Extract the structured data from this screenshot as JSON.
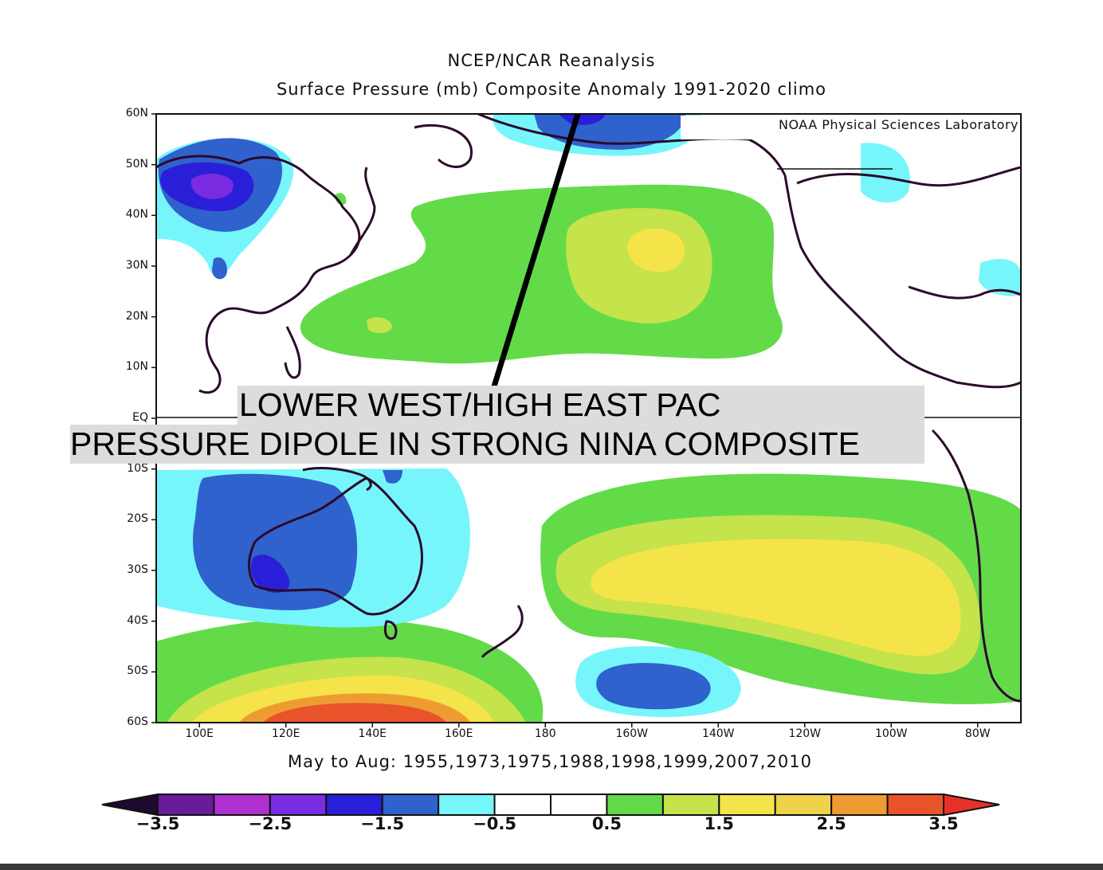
{
  "header": {
    "title": "NCEP/NCAR Reanalysis",
    "subtitle": "Surface Pressure (mb) Composite Anomaly 1991-2020 climo"
  },
  "credit": "NOAA Physical Sciences Laboratory",
  "annotation": {
    "line1": "LOWER WEST/HIGH EAST PAC",
    "line2": "PRESSURE DIPOLE IN STRONG NINA COMPOSITE"
  },
  "footer": {
    "caption": "May to Aug: 1955,1973,1975,1988,1998,1999,2007,2010"
  },
  "axes": {
    "lat_labels": [
      "60N",
      "50N",
      "40N",
      "30N",
      "20N",
      "10N",
      "EQ",
      "10S",
      "20S",
      "30S",
      "40S",
      "50S",
      "60S"
    ],
    "lon_labels": [
      "100E",
      "120E",
      "140E",
      "160E",
      "180",
      "160W",
      "140W",
      "120W",
      "100W",
      "80W"
    ]
  },
  "colorbar": {
    "labels": [
      "-3.5",
      "-2.5",
      "-1.5",
      "-0.5",
      "0.5",
      "1.5",
      "2.5",
      "3.5"
    ],
    "colors": [
      "#1e0a2e",
      "#6a1b9a",
      "#b02fd0",
      "#7a2ce0",
      "#2a1fd8",
      "#2f62cc",
      "#76f6fb",
      "#ffffff",
      "#ffffff",
      "#63db49",
      "#c5e34a",
      "#f5e34a",
      "#f0d24a",
      "#ee9c32",
      "#e8532a",
      "#e8302a"
    ]
  },
  "colors": {
    "land_outline": "#2b0a2b",
    "accent_line": "#000000"
  }
}
